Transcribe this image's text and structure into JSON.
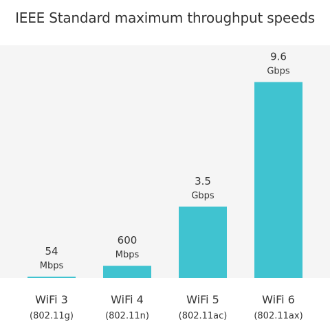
{
  "chart_data": {
    "type": "bar",
    "title": "IEEE Standard maximum throughput speeds",
    "xlabel": "",
    "ylabel": "",
    "categories": [
      {
        "name": "WiFi 3",
        "standard": "(802.11g)"
      },
      {
        "name": "WiFi 4",
        "standard": "(802.11n)"
      },
      {
        "name": "WiFi 5",
        "standard": "(802.11ac)"
      },
      {
        "name": "WiFi 6",
        "standard": "(802.11ax)"
      }
    ],
    "values": [
      0.054,
      0.6,
      3.5,
      9.6
    ],
    "value_labels": [
      {
        "number": "54",
        "unit": "Mbps"
      },
      {
        "number": "600",
        "unit": "Mbps"
      },
      {
        "number": "3.5",
        "unit": "Gbps"
      },
      {
        "number": "9.6",
        "unit": "Gbps"
      }
    ],
    "ylim": [
      0,
      11.4
    ],
    "grid": false,
    "legend": "none",
    "colors": {
      "bar": "#40c3d0",
      "plot_background": "#f5f5f5",
      "text": "#333333"
    }
  }
}
